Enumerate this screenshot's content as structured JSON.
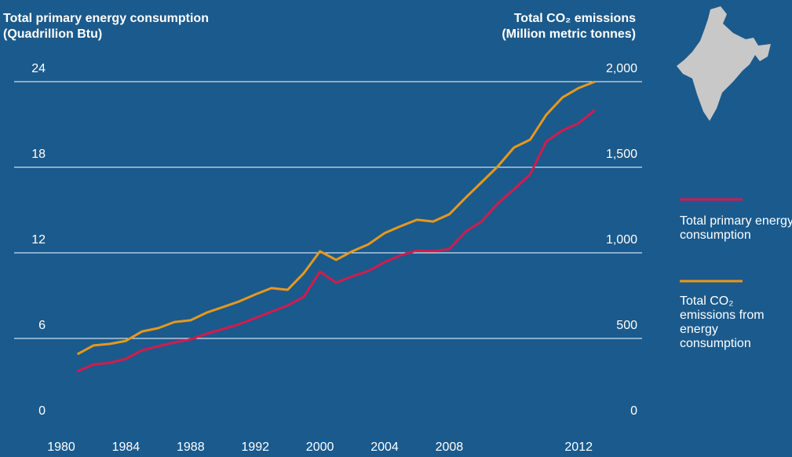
{
  "chart_data": {
    "type": "line",
    "ylabel": "Total primary energy consumption",
    "yunit": "(Quadrillion Btu)",
    "y2label": "Total CO₂ emissions",
    "y2unit": "(Million metric tonnes)",
    "categories": [
      "1980",
      null,
      null,
      null,
      "1984",
      null,
      null,
      null,
      "1988",
      null,
      null,
      null,
      "1992",
      null,
      null,
      null,
      "2000",
      null,
      null,
      null,
      "2004",
      null,
      null,
      null,
      "2008",
      null,
      null,
      null,
      null,
      null,
      null,
      null,
      "2012",
      null
    ],
    "series": [
      {
        "name": "Total primary energy consumption",
        "color": "#d41b4c",
        "axis": "y",
        "values": [
          null,
          3.69,
          4.18,
          4.29,
          4.57,
          5.17,
          5.45,
          5.72,
          5.94,
          6.33,
          6.66,
          6.99,
          7.43,
          7.87,
          8.31,
          8.92,
          10.68,
          9.91,
          10.35,
          10.73,
          11.34,
          11.83,
          12.16,
          12.11,
          12.27,
          13.48,
          14.2,
          15.47,
          16.46,
          17.5,
          19.81,
          20.58,
          21.08,
          22.01
        ]
      },
      {
        "name": "Total CO₂ emissions from energy consumption",
        "color": "#e8981c",
        "axis": "y2",
        "values": [
          null,
          408,
          459,
          468,
          486,
          541,
          560,
          596,
          606,
          651,
          683,
          716,
          757,
          794,
          784,
          881,
          1009,
          959,
          1009,
          1050,
          1115,
          1156,
          1193,
          1183,
          1225,
          1321,
          1413,
          1505,
          1615,
          1661,
          1807,
          1908,
          1963,
          2000
        ]
      }
    ],
    "ylim": [
      0,
      24
    ],
    "yticks": [
      0,
      6,
      12,
      18,
      24
    ],
    "y2lim": [
      0,
      2000
    ],
    "y2ticks": [
      0,
      500,
      {
        "value": 1000,
        "label": "1,000"
      },
      {
        "value": 1500,
        "label": "1,500"
      },
      {
        "value": 2000,
        "label": "2,000"
      }
    ],
    "grid": true
  }
}
